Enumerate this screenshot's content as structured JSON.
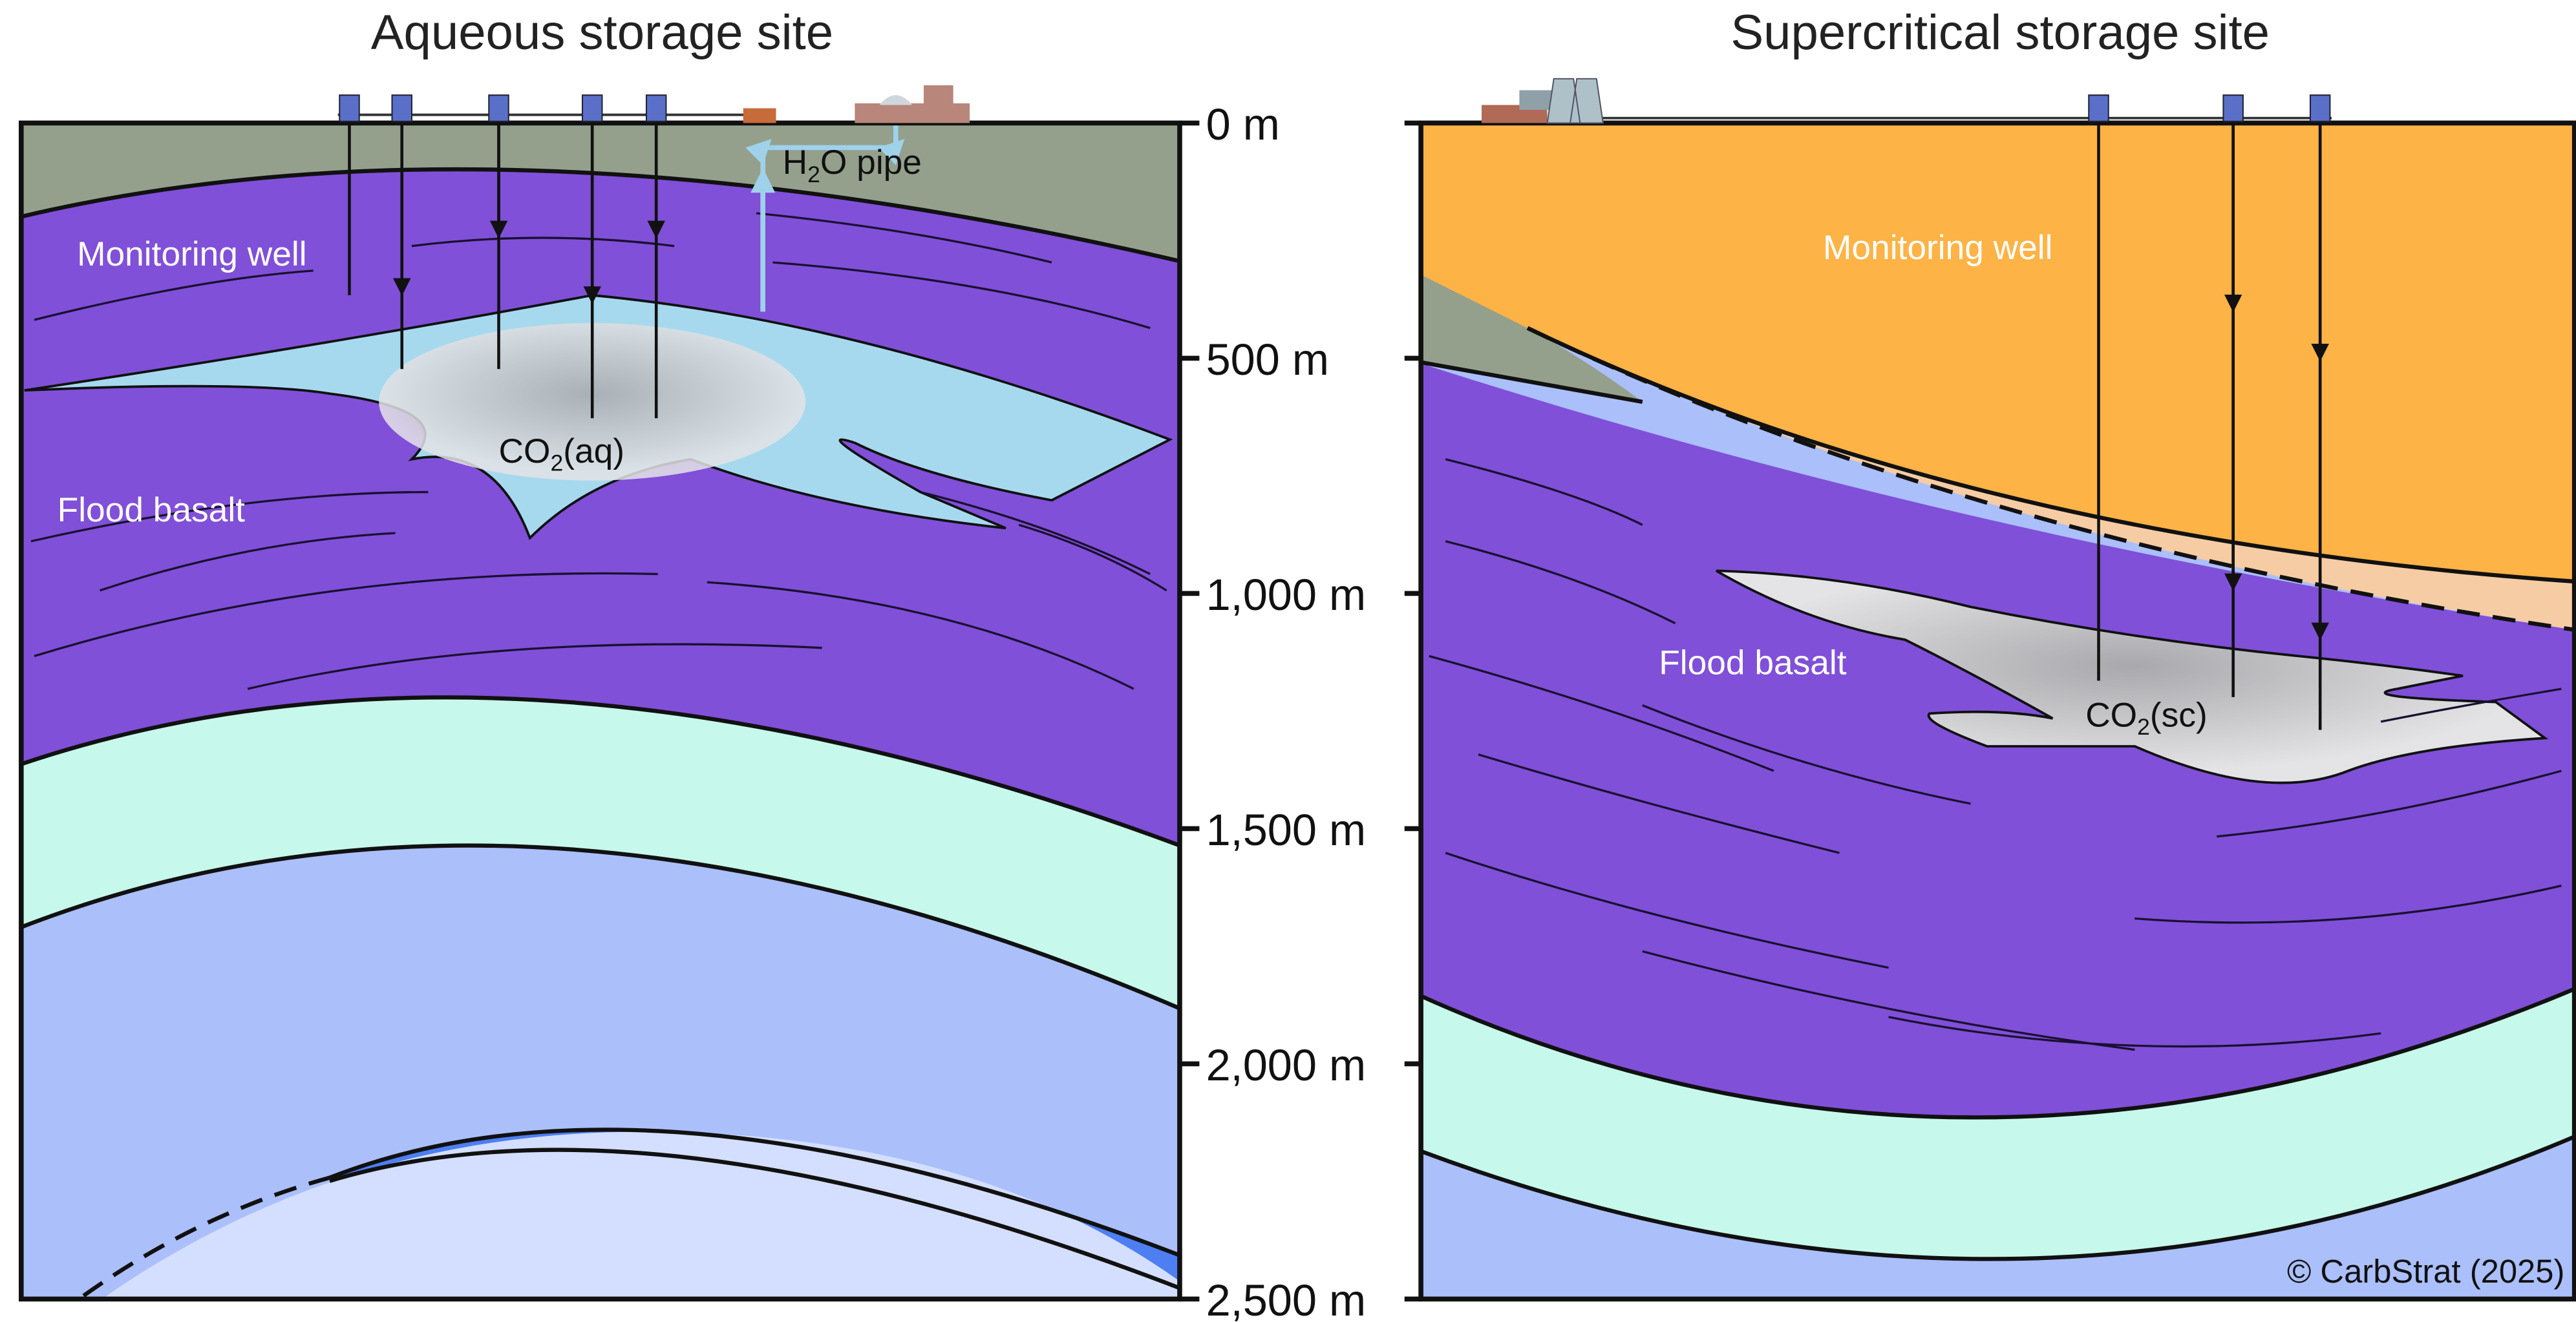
{
  "left": {
    "title": "Aqueous storage site",
    "monitoring_label": "Monitoring well",
    "rock_label": "Flood basalt",
    "plume_label": {
      "main": "CO",
      "sub": "2",
      "rest": "(aq)"
    },
    "pipe_label": {
      "main": "H",
      "sub": "2",
      "rest": "O pipe"
    }
  },
  "right": {
    "title": "Supercritical storage site",
    "monitoring_label": "Monitoring well",
    "rock_label": "Flood basalt",
    "plume_label": {
      "main": "CO",
      "sub": "2",
      "rest": "(sc)"
    }
  },
  "depth_axis": [
    "0 m",
    "500 m",
    "1,000 m",
    "1,500 m",
    "2,000 m",
    "2,500 m"
  ],
  "copyright": "© CarbStrat (2025)"
}
